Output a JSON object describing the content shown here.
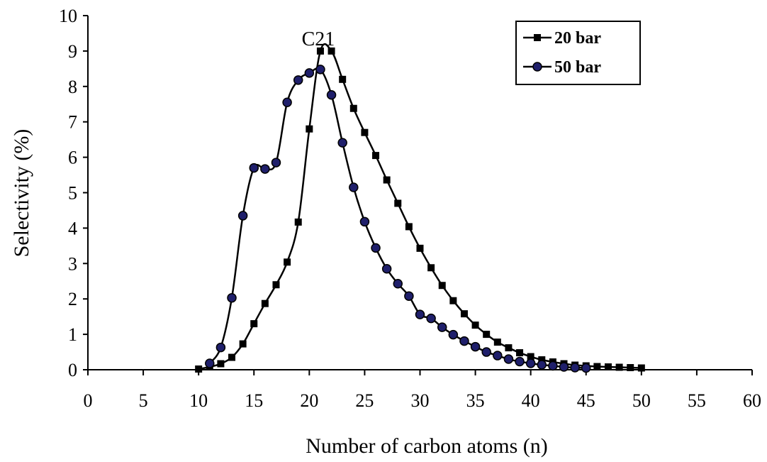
{
  "chart_data": {
    "type": "line",
    "title": "",
    "xlabel": "Number of carbon atoms (n)",
    "ylabel": "Selectivity (%)",
    "xlim": [
      0,
      60
    ],
    "ylim": [
      0,
      10
    ],
    "xticks": [
      0,
      5,
      10,
      15,
      20,
      25,
      30,
      35,
      40,
      45,
      50,
      55,
      60
    ],
    "yticks": [
      0,
      1,
      2,
      3,
      4,
      5,
      6,
      7,
      8,
      9,
      10
    ],
    "grid": false,
    "legend_position": "top-right",
    "annotation": {
      "text": "C21",
      "x": 21,
      "y": 9.0
    },
    "series": [
      {
        "name": "20 bar",
        "marker": "square",
        "color": "#000000",
        "x": [
          10,
          11,
          12,
          13,
          14,
          15,
          16,
          17,
          18,
          19,
          20,
          21,
          22,
          23,
          24,
          25,
          26,
          27,
          28,
          29,
          30,
          31,
          32,
          33,
          34,
          35,
          36,
          37,
          38,
          39,
          40,
          41,
          42,
          43,
          44,
          45,
          46,
          47,
          48,
          49,
          50
        ],
        "y": [
          0.02,
          0.08,
          0.17,
          0.35,
          0.73,
          1.3,
          1.87,
          2.4,
          3.04,
          4.17,
          6.8,
          9.0,
          9.0,
          8.2,
          7.38,
          6.7,
          6.05,
          5.36,
          4.7,
          4.04,
          3.43,
          2.88,
          2.38,
          1.95,
          1.58,
          1.26,
          1.0,
          0.78,
          0.62,
          0.48,
          0.37,
          0.28,
          0.22,
          0.17,
          0.13,
          0.11,
          0.09,
          0.08,
          0.07,
          0.06,
          0.05
        ]
      },
      {
        "name": "50 bar",
        "marker": "circle",
        "color": "#000000",
        "marker_fill": "#1f1f6b",
        "x": [
          11,
          12,
          13,
          14,
          15,
          16,
          17,
          18,
          19,
          20,
          21,
          22,
          23,
          24,
          25,
          26,
          27,
          28,
          29,
          30,
          31,
          32,
          33,
          34,
          35,
          36,
          37,
          38,
          39,
          40,
          41,
          42,
          43,
          44,
          45
        ],
        "y": [
          0.18,
          0.63,
          2.03,
          4.35,
          5.7,
          5.67,
          5.85,
          7.55,
          8.18,
          8.38,
          8.48,
          7.76,
          6.41,
          5.15,
          4.18,
          3.44,
          2.85,
          2.43,
          2.08,
          1.56,
          1.45,
          1.2,
          0.99,
          0.81,
          0.65,
          0.5,
          0.4,
          0.3,
          0.23,
          0.18,
          0.14,
          0.11,
          0.08,
          0.06,
          0.05
        ]
      }
    ]
  }
}
